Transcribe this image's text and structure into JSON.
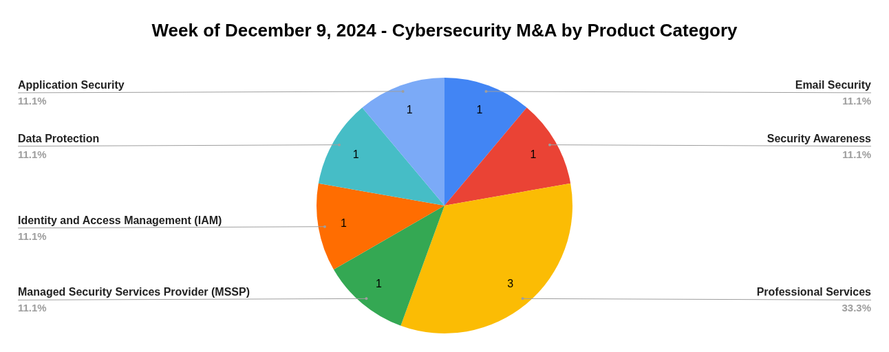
{
  "chart_data": {
    "type": "pie",
    "title": "Week of December 9, 2024 - Cybersecurity M&A by Product Category",
    "categories": [
      "Email Security",
      "Security Awareness",
      "Professional Services",
      "Managed Security Services Provider (MSSP)",
      "Identity and Access Management (IAM)",
      "Data Protection",
      "Application Security"
    ],
    "values": [
      1,
      1,
      3,
      1,
      1,
      1,
      1
    ],
    "colors": [
      "#4285f4",
      "#ea4335",
      "#fbbc04",
      "#34a853",
      "#ff6d01",
      "#46bdc6",
      "#7baaf7"
    ],
    "data_labels": true,
    "annotations": [
      "11.1%",
      "11.1%",
      "33.3%",
      "11.1%",
      "11.1%",
      "11.1%",
      "11.1%"
    ]
  }
}
